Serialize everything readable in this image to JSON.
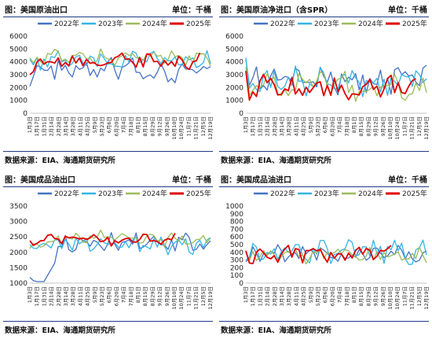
{
  "colors": {
    "2022": "#4472c4",
    "2023": "#33b5e5",
    "2024": "#9bbb59",
    "2025": "#e00000",
    "rule": "#1f3c88"
  },
  "legend_labels": [
    "2022年",
    "2023年",
    "2024年",
    "2025年"
  ],
  "panels": [
    {
      "title": "图：美国原油出口",
      "unit": "单位：千桶",
      "source": "数据来源：EIA、海通期货研究所",
      "chart_data": {
        "type": "line",
        "ylim": [
          0,
          6000
        ],
        "yticks": [
          "0",
          "1000",
          "2000",
          "3000",
          "4000",
          "5000",
          "6000"
        ],
        "xticks": [
          "1月3日",
          "1月17日",
          "1月31日",
          "2月14日",
          "2月28日",
          "3月14日",
          "3月28日",
          "4月11日",
          "4月25日",
          "5月9日",
          "5月23日",
          "6月6日",
          "6月20日",
          "7月4日",
          "7月18日",
          "8月1日",
          "8月15日",
          "8月29日",
          "9月12日",
          "9月26日",
          "10月10日",
          "10月24日",
          "11月7日",
          "11月21日",
          "12月5日",
          "12月19日"
        ]
      }
    },
    {
      "title": "图：美国原油净进口（含SPR）",
      "unit": "单位：千桶",
      "source": "数据来源：EIA、海通期货研究所",
      "chart_data": {
        "type": "line",
        "ylim": [
          0,
          6000
        ],
        "yticks": [
          "0",
          "1000",
          "2000",
          "3000",
          "4000",
          "5000",
          "6000"
        ],
        "xticks": [
          "1月3日",
          "1月17日",
          "1月31日",
          "2月14日",
          "2月28日",
          "3月14日",
          "3月28日",
          "4月11日",
          "4月25日",
          "5月9日",
          "5月23日",
          "6月6日",
          "6月20日",
          "7月4日",
          "7月18日",
          "8月1日",
          "8月15日",
          "8月29日",
          "9月12日",
          "9月26日",
          "10月10日",
          "10月24日",
          "11月7日",
          "11月21日",
          "12月5日",
          "12月19日"
        ]
      }
    },
    {
      "title": "图：美国成品油出口",
      "unit": "单位：千桶",
      "source": "数据来源：EIA、海通期货研究所",
      "chart_data": {
        "type": "line",
        "ylim": [
          1000,
          3500
        ],
        "yticks": [
          "1000",
          "1500",
          "2000",
          "2500",
          "3000",
          "3500"
        ],
        "xticks": [
          "1月3日",
          "1月17日",
          "1月31日",
          "2月14日",
          "2月28日",
          "3月14日",
          "3月28日",
          "4月11日",
          "4月25日",
          "5月9日",
          "5月23日",
          "6月6日",
          "6月20日",
          "7月4日",
          "7月18日",
          "8月1日",
          "8月15日",
          "8月29日",
          "9月12日",
          "9月26日",
          "10月10日",
          "10月24日",
          "11月7日",
          "11月21日",
          "12月5日",
          "12月19日"
        ]
      }
    },
    {
      "title": "图：美国成品油进口",
      "unit": "单位：千桶",
      "source": "数据来源：EIA、海通期货研究所",
      "chart_data": {
        "type": "line",
        "ylim": [
          0,
          1000
        ],
        "yticks": [
          "0",
          "100",
          "200",
          "300",
          "400",
          "500",
          "600",
          "700",
          "800",
          "900",
          "1000"
        ],
        "xticks": [
          "1月3日",
          "1月17日",
          "1月31日",
          "2月14日",
          "2月28日",
          "3月14日",
          "3月28日",
          "4月11日",
          "4月25日",
          "5月9日",
          "5月23日",
          "6月6日",
          "6月20日",
          "7月4日",
          "7月18日",
          "8月1日",
          "8月15日",
          "8月29日",
          "9月12日",
          "9月26日",
          "10月10日",
          "10月24日",
          "11月7日",
          "11月21日",
          "12月5日",
          "12月19日"
        ]
      }
    }
  ]
}
